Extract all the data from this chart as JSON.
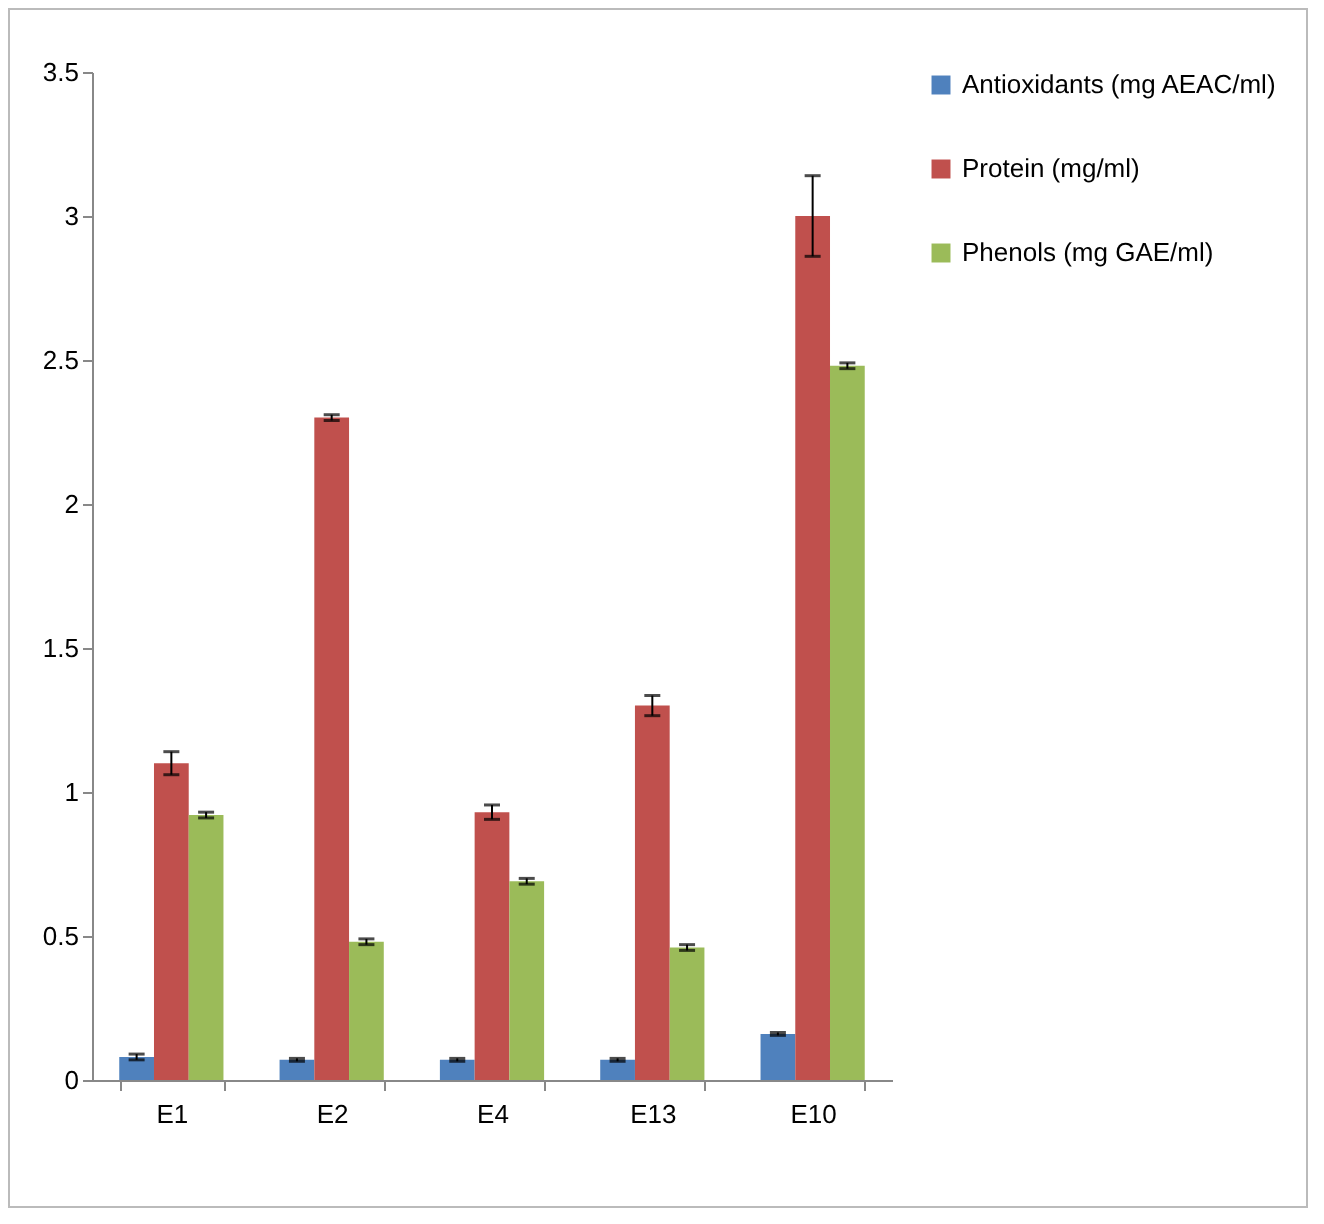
{
  "chart_data": {
    "type": "bar",
    "categories": [
      "E1",
      "E2",
      "E4",
      "E13",
      "E10"
    ],
    "series": [
      {
        "name": "Antioxidants (mg AEAC/ml)",
        "color": "#4f81bd",
        "values": [
          0.08,
          0.07,
          0.07,
          0.07,
          0.16
        ],
        "errors": [
          0.01,
          0.005,
          0.005,
          0.005,
          0.005
        ]
      },
      {
        "name": "Protein (mg/ml)",
        "color": "#c0504d",
        "values": [
          1.1,
          2.3,
          0.93,
          1.3,
          3.0
        ],
        "errors": [
          0.04,
          0.01,
          0.025,
          0.035,
          0.14
        ]
      },
      {
        "name": "Phenols (mg GAE/ml)",
        "color": "#9bbb59",
        "values": [
          0.92,
          0.48,
          0.69,
          0.46,
          2.48
        ],
        "errors": [
          0.01,
          0.01,
          0.01,
          0.01,
          0.01
        ]
      }
    ],
    "ylim": [
      0,
      3.5
    ],
    "yticks": [
      0,
      0.5,
      1,
      1.5,
      2,
      2.5,
      3,
      3.5
    ],
    "grid": false,
    "legend": "right"
  }
}
